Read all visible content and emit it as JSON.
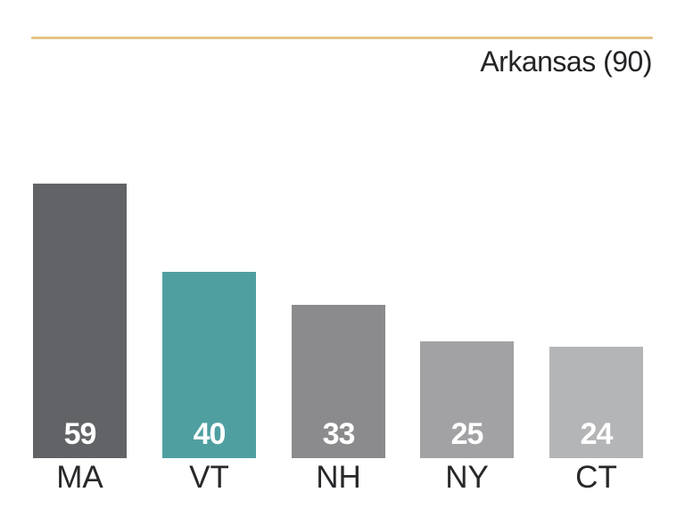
{
  "header": {
    "title": "Arkansas (90)",
    "rule_color": "#e5c488",
    "title_color": "#232326"
  },
  "chart_data": {
    "type": "bar",
    "categories": [
      "MA",
      "VT",
      "NH",
      "NY",
      "CT"
    ],
    "values": [
      59,
      40,
      33,
      25,
      24
    ],
    "title": "Arkansas (90)",
    "xlabel": "",
    "ylabel": "",
    "ylim": [
      0,
      62
    ],
    "grid": false,
    "legend_position": "none",
    "bar_colors": [
      "#626366",
      "#4f9fa1",
      "#8b8b8d",
      "#a2a2a4",
      "#b4b5b7"
    ],
    "value_label_color": "#ffffff",
    "category_label_color": "#28282b",
    "value_labels_inside_bottom": true
  }
}
